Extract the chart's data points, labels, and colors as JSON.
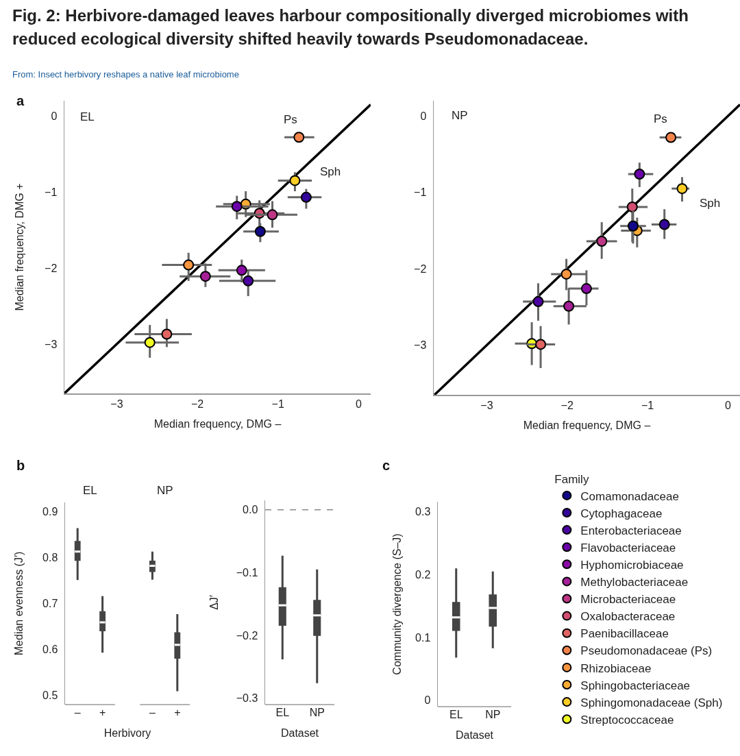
{
  "chart_data": [
    {
      "type": "scatter",
      "title": "Fig. 2: Herbivore-damaged leaves harbour compositionally diverged microbiomes with reduced ecological diversity shifted heavily towards Pseudomonadaceae.",
      "subtitle": "EL",
      "xlabel": "Median frequency, DMG –",
      "ylabel": "Median frequency, DMG +",
      "xlim": [
        -3.65,
        0.15
      ],
      "ylim": [
        -3.65,
        0.2
      ],
      "xticks": [
        -3,
        -2,
        -1,
        0
      ],
      "yticks": [
        -3,
        -2,
        -1,
        0
      ],
      "marker": "circle",
      "annotations": [
        "From: Insect herbivory reshapes a native leaf microbiome",
        "a",
        {
          "text": "Ps",
          "x": -0.74,
          "y": -0.28
        },
        {
          "text": "Sph",
          "x": -0.79,
          "y": -0.85
        }
      ],
      "series": [
        {
          "color": "#12098a",
          "x": [
            -1.22
          ],
          "values": [
            -1.52
          ],
          "xerrors": [
            [
              -1.43,
              -0.99
            ]
          ],
          "errors": [
            [
              -1.66,
              -1.41
            ]
          ]
        },
        {
          "color": "#33059a",
          "x": [
            -0.65
          ],
          "values": [
            -1.07
          ],
          "xerrors": [
            [
              -0.88,
              -0.46
            ]
          ],
          "errors": [
            [
              -1.22,
              -0.96
            ]
          ]
        },
        {
          "color": "#4c02a1",
          "x": [
            -1.37
          ],
          "values": [
            -2.17
          ],
          "xerrors": [
            [
              -1.73,
              -1.03
            ]
          ],
          "errors": [
            [
              -2.37,
              -2.03
            ]
          ]
        },
        {
          "color": "#6a00a8",
          "x": [
            -1.51
          ],
          "values": [
            -1.19
          ],
          "xerrors": [
            [
              -1.77,
              -1.12
            ]
          ],
          "errors": [
            [
              -1.36,
              -1.05
            ]
          ]
        },
        {
          "color": "#8b0aa5",
          "x": [
            -1.45
          ],
          "values": [
            -2.03
          ],
          "xerrors": [
            [
              -1.74,
              -1.16
            ]
          ],
          "errors": [
            [
              -2.19,
              -1.89
            ]
          ]
        },
        {
          "color": "#a62098",
          "x": [
            -1.9
          ],
          "values": [
            -2.11
          ],
          "xerrors": [
            [
              -2.22,
              -1.59
            ]
          ],
          "errors": [
            [
              -2.25,
              -1.94
            ]
          ]
        },
        {
          "color": "#bd3786",
          "x": [
            -1.07
          ],
          "values": [
            -1.3
          ],
          "xerrors": [
            [
              -1.4,
              -0.76
            ]
          ],
          "errors": [
            [
              -1.47,
              -1.12
            ]
          ]
        },
        {
          "color": "#d14e72",
          "x": [
            -1.23
          ],
          "values": [
            -1.28
          ],
          "xerrors": [
            [
              -1.52,
              -0.92
            ]
          ],
          "errors": [
            [
              -1.45,
              -1.11
            ]
          ]
        },
        {
          "color": "#e16462",
          "x": [
            -2.38
          ],
          "values": [
            -2.87
          ],
          "xerrors": [
            [
              -2.78,
              -2.07
            ]
          ],
          "errors": [
            [
              -3.04,
              -2.67
            ]
          ]
        },
        {
          "color": "#f2844b",
          "x": [
            -0.74
          ],
          "values": [
            -0.28
          ],
          "xerrors": [
            [
              -0.92,
              -0.55
            ]
          ],
          "errors": [
            null
          ]
        },
        {
          "color": "#f89540",
          "x": [
            -2.11
          ],
          "values": [
            -1.96
          ],
          "xerrors": [
            [
              -2.44,
              -1.82
            ]
          ],
          "errors": [
            [
              -2.17,
              -1.8
            ]
          ]
        },
        {
          "color": "#fdab33",
          "x": [
            -1.4
          ],
          "values": [
            -1.16
          ],
          "xerrors": [
            [
              -1.68,
              -1.1
            ]
          ],
          "errors": [
            [
              -1.33,
              -0.99
            ]
          ]
        },
        {
          "color": "#fccd25",
          "x": [
            -0.79
          ],
          "values": [
            -0.85
          ],
          "xerrors": [
            [
              -1.0,
              -0.58
            ]
          ],
          "errors": [
            [
              -0.99,
              -0.74
            ]
          ]
        },
        {
          "color": "#f0f921",
          "x": [
            -2.59
          ],
          "values": [
            -2.98
          ],
          "xerrors": [
            [
              -2.89,
              -2.23
            ]
          ],
          "errors": [
            [
              -3.18,
              -2.75
            ]
          ]
        },
        {
          "type": "line",
          "marker": "none",
          "color": "#000000",
          "x": [
            -3.65,
            0.15
          ],
          "values": [
            -3.65,
            0.15
          ]
        }
      ]
    },
    {
      "type": "scatter",
      "title": "NP",
      "xlabel": "Median frequency, DMG –",
      "xlim": [
        -3.66,
        0.15
      ],
      "ylim": [
        -3.65,
        0.2
      ],
      "xticks": [
        -3,
        -2,
        -1,
        0
      ],
      "yticks": [
        -3,
        -2,
        -1,
        0
      ],
      "marker": "circle",
      "legend": "bottom right",
      "legend_title": "Family",
      "annotations": [
        {
          "text": "Ps",
          "x": -0.71,
          "y": -0.28
        },
        {
          "text": "Sph",
          "x": -0.57,
          "y": -0.95
        }
      ],
      "series": [
        {
          "name": "Comamonadaceae",
          "color": "#12098a",
          "x": [
            -1.18
          ],
          "values": [
            -1.44
          ],
          "xerrors": [
            [
              -1.34,
              -1.02
            ]
          ],
          "errors": [
            [
              -1.67,
              -1.24
            ]
          ]
        },
        {
          "name": "Cytophagaceae",
          "color": "#33059a",
          "x": [
            -0.79
          ],
          "values": [
            -1.42
          ],
          "xerrors": [
            [
              -0.95,
              -0.64
            ]
          ],
          "errors": [
            [
              -1.61,
              -1.22
            ]
          ]
        },
        {
          "name": "Enterobacteriaceae",
          "color": "#4c02a1",
          "x": [
            -2.36
          ],
          "values": [
            -2.43
          ],
          "xerrors": [
            [
              -2.55,
              -2.14
            ]
          ],
          "errors": [
            [
              -2.68,
              -2.19
            ]
          ]
        },
        {
          "name": "Flavobacteriaceae",
          "color": "#6a00a8",
          "x": [
            -1.1
          ],
          "values": [
            -0.76
          ],
          "xerrors": [
            [
              -1.24,
              -0.93
            ]
          ],
          "errors": [
            [
              -0.93,
              -0.61
            ]
          ]
        },
        {
          "name": "Hyphomicrobiaceae",
          "color": "#8b0aa5",
          "x": [
            -1.76
          ],
          "values": [
            -2.26
          ],
          "xerrors": [
            [
              -1.98,
              -1.61
            ]
          ],
          "errors": [
            [
              -2.48,
              -2.02
            ]
          ]
        },
        {
          "name": "Methylobacteriaceae",
          "color": "#a62098",
          "x": [
            -1.98
          ],
          "values": [
            -2.49
          ],
          "xerrors": [
            [
              -2.17,
              -1.76
            ]
          ],
          "errors": [
            [
              -2.73,
              -2.25
            ]
          ]
        },
        {
          "name": "Microbacteriaceae",
          "color": "#bd3786",
          "x": [
            -1.57
          ],
          "values": [
            -1.64
          ],
          "xerrors": [
            [
              -1.76,
              -1.38
            ]
          ],
          "errors": [
            [
              -1.87,
              -1.39
            ]
          ]
        },
        {
          "name": "Oxalobacteraceae",
          "color": "#d14e72",
          "x": [
            -1.19
          ],
          "values": [
            -1.19
          ],
          "xerrors": [
            [
              -1.36,
              -1.0
            ]
          ],
          "errors": [
            [
              -1.65,
              -0.95
            ]
          ]
        },
        {
          "name": "Paenibacillaceae",
          "color": "#e16462",
          "x": [
            -2.33
          ],
          "values": [
            -2.99
          ],
          "xerrors": [
            [
              -2.51,
              -2.15
            ]
          ],
          "errors": [
            [
              -3.3,
              -2.75
            ]
          ]
        },
        {
          "name": "Pseudomonadaceae (Ps)",
          "color": "#f2844b",
          "x": [
            -0.71
          ],
          "values": [
            -0.28
          ],
          "xerrors": [
            [
              -0.85,
              -0.58
            ]
          ],
          "errors": [
            null
          ]
        },
        {
          "name": "Rhizobiaceae",
          "color": "#f89540",
          "x": [
            -2.01
          ],
          "values": [
            -2.07
          ],
          "xerrors": [
            [
              -2.2,
              -1.76
            ]
          ],
          "errors": [
            [
              -2.28,
              -1.87
            ]
          ]
        },
        {
          "name": "Sphingobacteriaceae",
          "color": "#fdab33",
          "x": [
            -1.13
          ],
          "values": [
            -1.5
          ],
          "xerrors": [
            [
              -1.33,
              -0.96
            ]
          ],
          "errors": [
            [
              -1.72,
              -1.33
            ]
          ]
        },
        {
          "name": "Sphingomonadaceae (Sph)",
          "color": "#fccd25",
          "x": [
            -0.57
          ],
          "values": [
            -0.95
          ],
          "xerrors": [
            [
              -0.7,
              -0.48
            ]
          ],
          "errors": [
            [
              -1.12,
              -0.8
            ]
          ]
        },
        {
          "name": "Streptococcaceae",
          "color": "#f0f921",
          "x": [
            -2.44
          ],
          "values": [
            -2.98
          ],
          "xerrors": [
            [
              -2.65,
              -2.26
            ]
          ],
          "errors": [
            [
              -3.26,
              -2.7
            ]
          ]
        },
        {
          "type": "line",
          "marker": "none",
          "color": "#000000",
          "x": [
            -3.65,
            0.15
          ],
          "values": [
            -3.65,
            0.15
          ]
        }
      ]
    },
    {
      "type": "box",
      "ylabel": "Median evenness (J′)",
      "xlabel": "Herbivory",
      "categories": [
        "–",
        "+",
        null,
        "–",
        "+"
      ],
      "color": "#444444",
      "ylim": [
        0.48,
        0.92
      ],
      "yticks": [
        0.5,
        0.6,
        0.7,
        0.8,
        0.9
      ],
      "annotations": [
        "b",
        "EL",
        "NP"
      ],
      "boxes": [
        {
          "low": 0.751,
          "q1": 0.795,
          "median": 0.813,
          "q3": 0.834,
          "high": 0.864
        },
        {
          "low": 0.593,
          "q1": 0.642,
          "median": 0.659,
          "q3": 0.681,
          "high": 0.716
        },
        null,
        {
          "low": 0.752,
          "q1": 0.771,
          "median": 0.782,
          "q3": 0.791,
          "high": 0.813
        },
        {
          "low": 0.509,
          "q1": 0.582,
          "median": 0.61,
          "q3": 0.635,
          "high": 0.677
        }
      ]
    },
    {
      "type": "box",
      "ylabel": "ΔJ′",
      "xlabel": "Dataset",
      "categories": [
        "EL",
        "NP"
      ],
      "color": "#444444",
      "ylim": [
        -0.31,
        0.015
      ],
      "yticks": [
        {
          "value": 0,
          "label": "0.0"
        },
        -0.1,
        -0.2,
        -0.3
      ],
      "ref_lines": [
        {
          "axis": "y",
          "value": 0,
          "color": "#888888",
          "line_style": "dashed"
        }
      ],
      "boxes": [
        {
          "low": -0.238,
          "q1": -0.183,
          "median": -0.152,
          "q3": -0.125,
          "high": -0.073
        },
        {
          "low": -0.276,
          "q1": -0.199,
          "median": -0.168,
          "q3": -0.145,
          "high": -0.095
        }
      ]
    },
    {
      "type": "box",
      "ylabel": "Community divergence (S–J)",
      "xlabel": "Dataset",
      "categories": [
        "EL",
        "NP"
      ],
      "color": "#444444",
      "ylim": [
        -0.01,
        0.316
      ],
      "yticks": [
        0,
        0.1,
        0.2,
        0.3
      ],
      "annotations": [
        "c"
      ],
      "boxes": [
        {
          "low": 0.068,
          "q1": 0.112,
          "median": 0.132,
          "q3": 0.155,
          "high": 0.21
        },
        {
          "low": 0.083,
          "q1": 0.119,
          "median": 0.147,
          "q3": 0.167,
          "high": 0.205
        }
      ]
    }
  ]
}
